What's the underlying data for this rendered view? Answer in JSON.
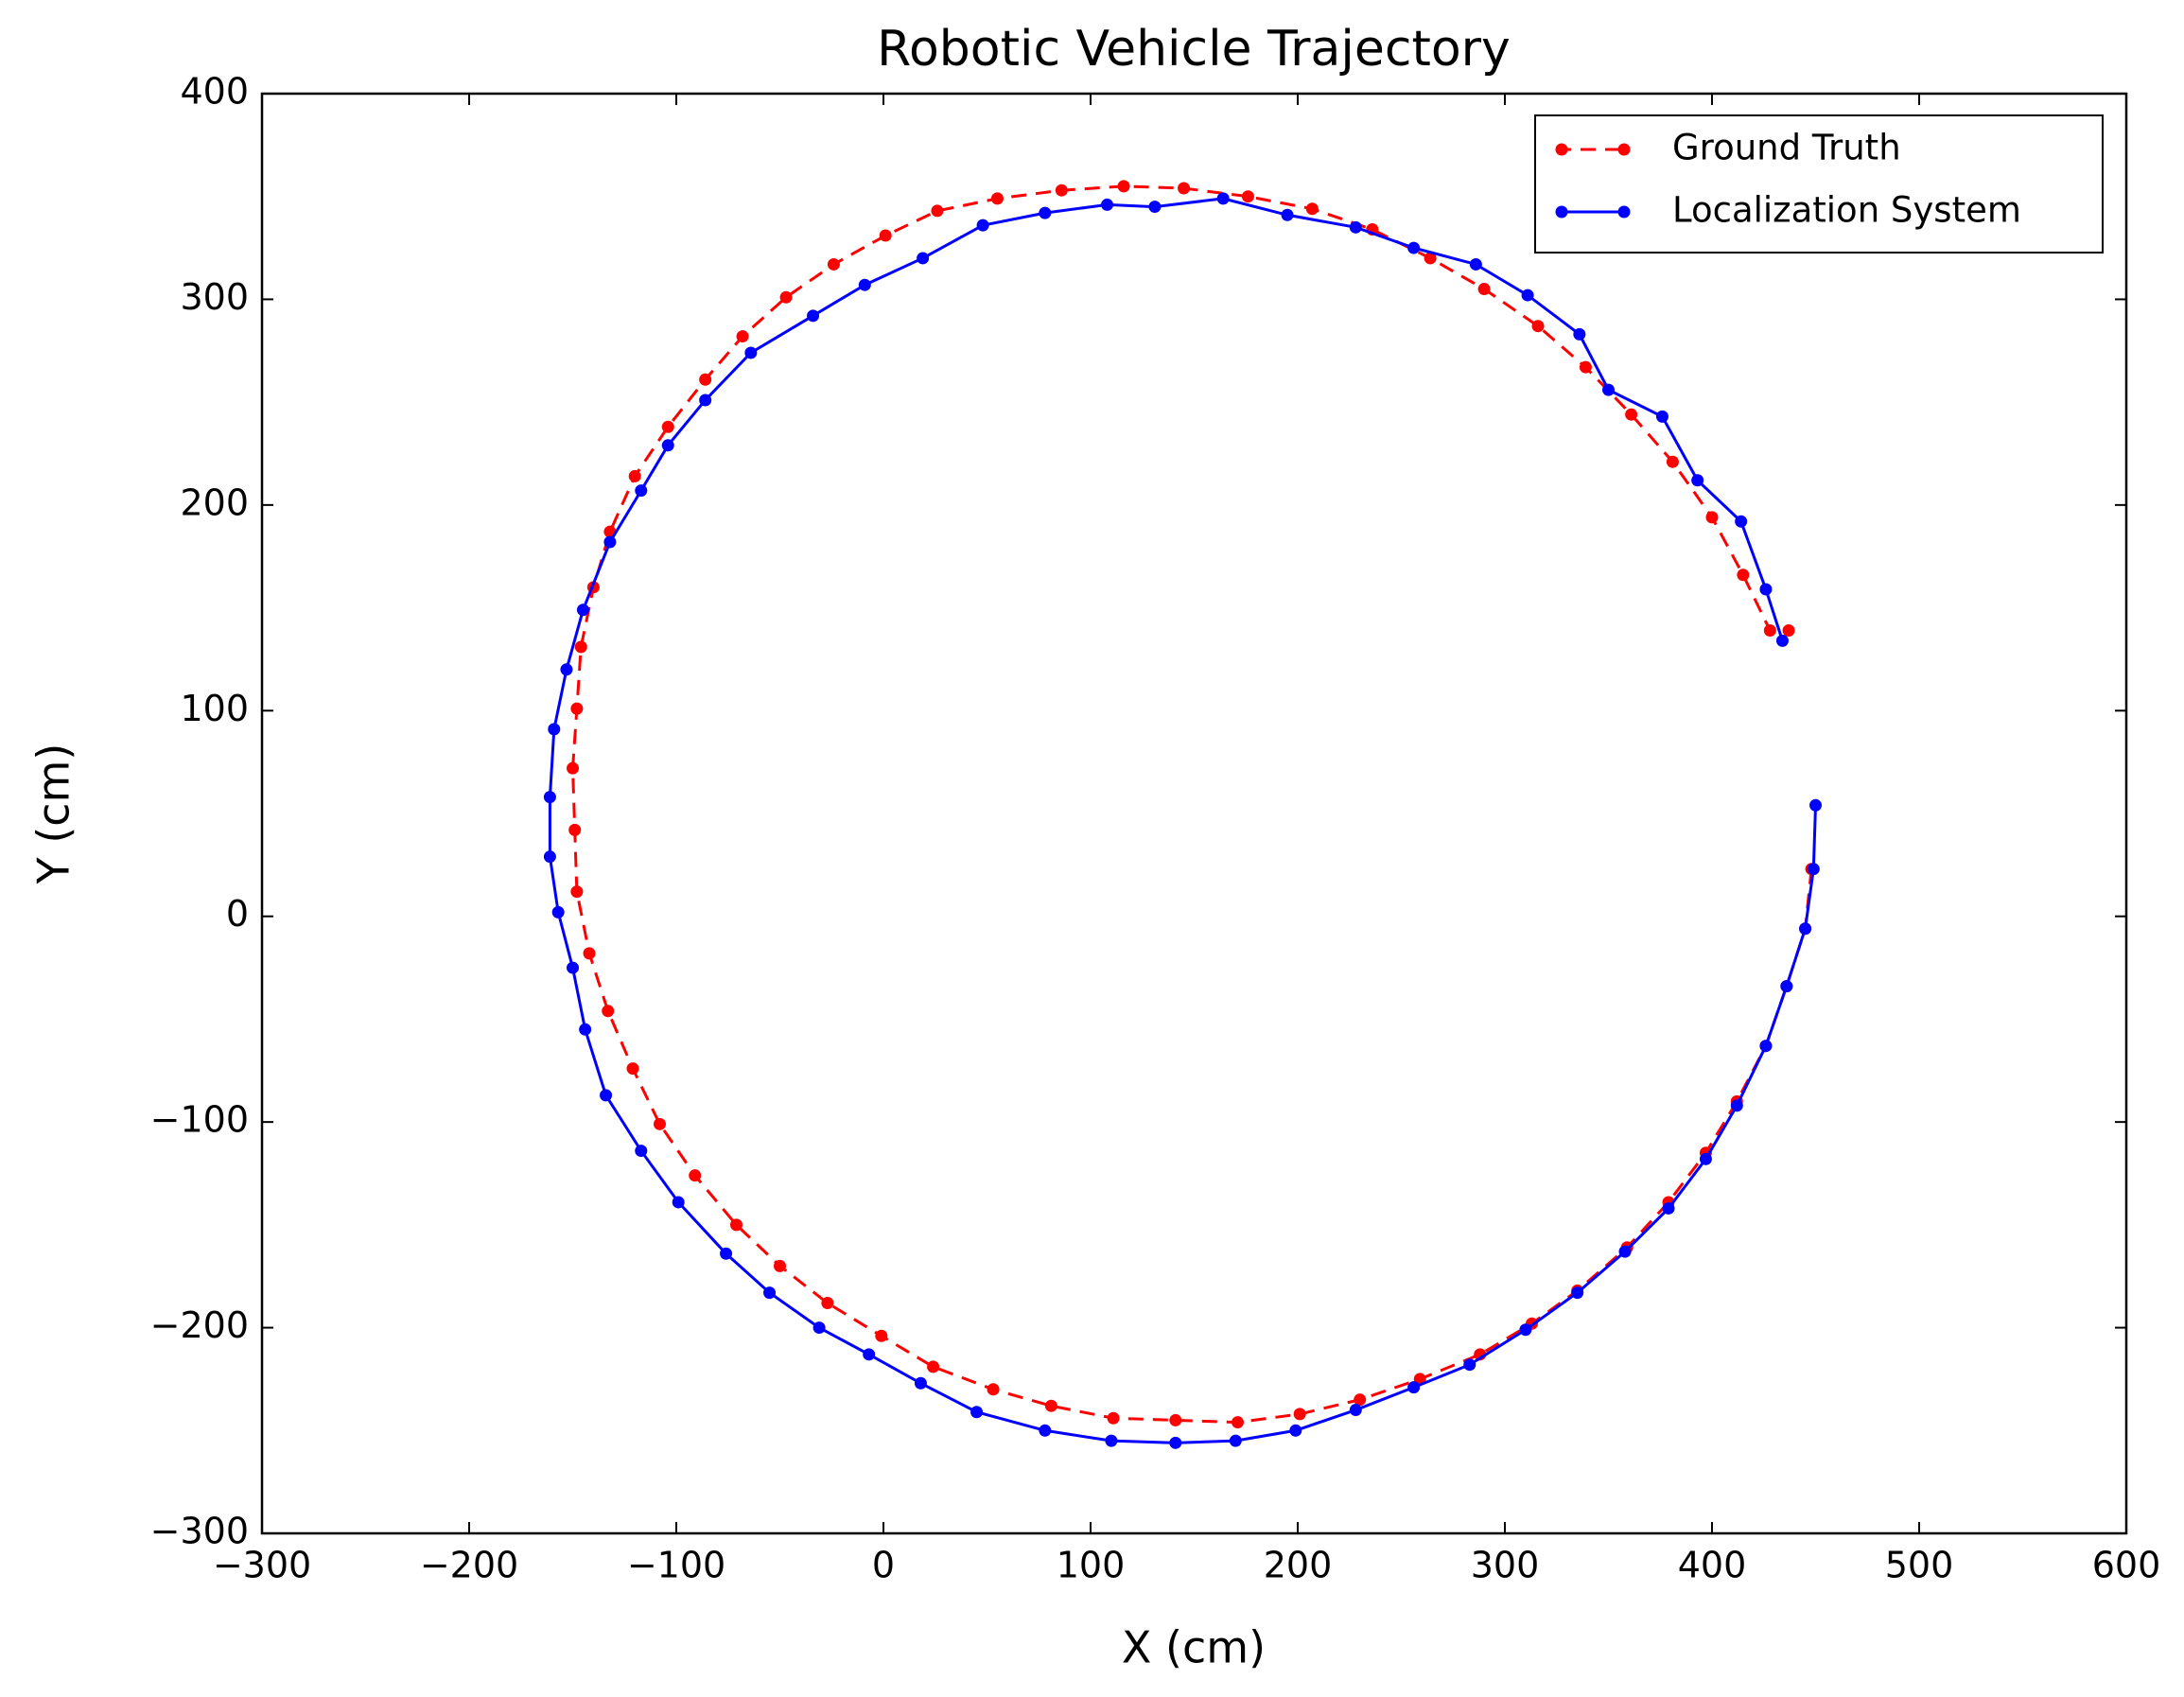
{
  "chart_data": {
    "type": "line",
    "title": "Robotic Vehicle Trajectory",
    "x_label": "X (cm)",
    "y_label": "Y (cm)",
    "xlim": [
      -300,
      600
    ],
    "ylim": [
      -300,
      400
    ],
    "xticks": [
      {
        "value": -300,
        "label": "−300"
      },
      {
        "value": -200,
        "label": "−200"
      },
      {
        "value": -100,
        "label": "−100"
      },
      0,
      100,
      200,
      300,
      400,
      500,
      600
    ],
    "yticks": [
      {
        "value": -300,
        "label": "−300"
      },
      {
        "value": -200,
        "label": "−200"
      },
      {
        "value": -100,
        "label": "−100"
      },
      0,
      100,
      200,
      300,
      400
    ],
    "legend": "upper right",
    "grid": false,
    "series": [
      {
        "name": "Ground Truth",
        "color": "#ff0000",
        "dashed": true,
        "x": [
          448,
          445,
          436,
          426,
          412,
          397,
          379,
          359,
          335,
          313,
          288,
          259,
          230,
          201,
          171,
          141,
          111,
          81,
          53,
          24,
          -1,
          -27,
          -50,
          -71,
          -91,
          -108,
          -121,
          -133,
          -142,
          -148,
          -149,
          -150,
          -148,
          -146,
          -140,
          -132,
          -120,
          -104,
          -86,
          -68,
          -47,
          -24,
          1,
          26,
          55,
          86,
          116,
          145,
          176,
          207,
          236,
          264,
          290,
          316,
          339,
          361,
          381,
          400,
          415,
          428,
          437
        ],
        "values": [
          23,
          -6,
          -34,
          -63,
          -90,
          -115,
          -139,
          -161,
          -182,
          -198,
          -213,
          -225,
          -235,
          -242,
          -246,
          -245,
          -244,
          -238,
          -230,
          -219,
          -204,
          -188,
          -170,
          -150,
          -126,
          -101,
          -74,
          -46,
          -18,
          12,
          42,
          72,
          101,
          131,
          160,
          187,
          214,
          238,
          261,
          282,
          301,
          317,
          331,
          343,
          349,
          353,
          355,
          354,
          350,
          344,
          334,
          320,
          305,
          287,
          267,
          244,
          221,
          194,
          166,
          139,
          139
        ]
      },
      {
        "name": "Localization System",
        "color": "#0000ff",
        "dashed": false,
        "x": [
          450,
          449,
          445,
          436,
          426,
          412,
          397,
          379,
          358,
          335,
          310,
          283,
          256,
          228,
          199,
          170,
          141,
          110,
          78,
          45,
          18,
          -7,
          -31,
          -55,
          -76,
          -99,
          -117,
          -134,
          -144,
          -150,
          -157,
          -161,
          -161,
          -159,
          -153,
          -145,
          -132,
          -117,
          -104,
          -86,
          -64,
          -34,
          -9,
          19,
          48,
          78,
          108,
          131,
          164,
          195,
          228,
          256,
          286,
          311,
          336,
          350,
          376,
          393,
          414,
          426,
          434
        ],
        "values": [
          54,
          23,
          -6,
          -34,
          -63,
          -92,
          -118,
          -142,
          -163,
          -183,
          -201,
          -218,
          -229,
          -240,
          -250,
          -255,
          -256,
          -255,
          -250,
          -241,
          -227,
          -213,
          -200,
          -183,
          -164,
          -139,
          -114,
          -87,
          -55,
          -25,
          2,
          29,
          58,
          91,
          120,
          149,
          182,
          207,
          229,
          251,
          274,
          292,
          307,
          320,
          336,
          342,
          346,
          345,
          349,
          341,
          335,
          325,
          317,
          302,
          283,
          256,
          243,
          212,
          192,
          159,
          134
        ]
      }
    ]
  }
}
